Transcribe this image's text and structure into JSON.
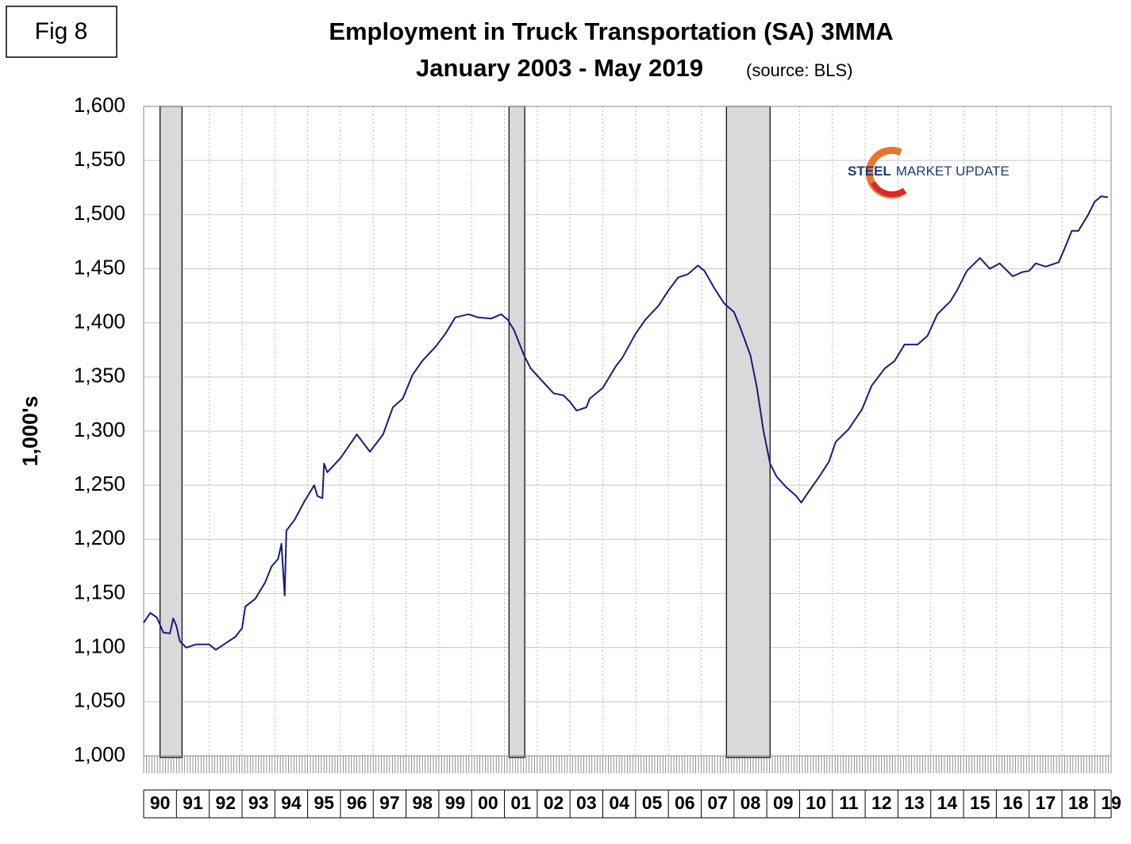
{
  "figure_label": "Fig 8",
  "logo": {
    "bold": "STEEL",
    "rest": "MARKET UPDATE"
  },
  "chart_data": {
    "type": "line",
    "title": "Employment in Truck Transportation (SA) 3MMA",
    "subtitle": "January 2003 - May 2019",
    "source": "(source: BLS)",
    "y_label": "1,000's",
    "xlim": [
      1990,
      2019.5
    ],
    "xticks": [
      {
        "value": 1990,
        "label": "90"
      },
      {
        "value": 1991,
        "label": "91"
      },
      {
        "value": 1992,
        "label": "92"
      },
      {
        "value": 1993,
        "label": "93"
      },
      {
        "value": 1994,
        "label": "94"
      },
      {
        "value": 1995,
        "label": "95"
      },
      {
        "value": 1996,
        "label": "96"
      },
      {
        "value": 1997,
        "label": "97"
      },
      {
        "value": 1998,
        "label": "98"
      },
      {
        "value": 1999,
        "label": "99"
      },
      {
        "value": 2000,
        "label": "00"
      },
      {
        "value": 2001,
        "label": "01"
      },
      {
        "value": 2002,
        "label": "02"
      },
      {
        "value": 2003,
        "label": "03"
      },
      {
        "value": 2004,
        "label": "04"
      },
      {
        "value": 2005,
        "label": "05"
      },
      {
        "value": 2006,
        "label": "06"
      },
      {
        "value": 2007,
        "label": "07"
      },
      {
        "value": 2008,
        "label": "08"
      },
      {
        "value": 2009,
        "label": "09"
      },
      {
        "value": 2010,
        "label": "10"
      },
      {
        "value": 2011,
        "label": "11"
      },
      {
        "value": 2012,
        "label": "12"
      },
      {
        "value": 2013,
        "label": "13"
      },
      {
        "value": 2014,
        "label": "14"
      },
      {
        "value": 2015,
        "label": "15"
      },
      {
        "value": 2016,
        "label": "16"
      },
      {
        "value": 2017,
        "label": "17"
      },
      {
        "value": 2018,
        "label": "18"
      },
      {
        "value": 2019,
        "label": "19"
      }
    ],
    "ylim": [
      1000,
      1600
    ],
    "yticks": [
      {
        "value": 1000,
        "label": "1,000"
      },
      {
        "value": 1050,
        "label": "1,050"
      },
      {
        "value": 1100,
        "label": "1,100"
      },
      {
        "value": 1150,
        "label": "1,150"
      },
      {
        "value": 1200,
        "label": "1,200"
      },
      {
        "value": 1250,
        "label": "1,250"
      },
      {
        "value": 1300,
        "label": "1,300"
      },
      {
        "value": 1350,
        "label": "1,350"
      },
      {
        "value": 1400,
        "label": "1,400"
      },
      {
        "value": 1450,
        "label": "1,450"
      },
      {
        "value": 1500,
        "label": "1,500"
      },
      {
        "value": 1550,
        "label": "1,550"
      },
      {
        "value": 1600,
        "label": "1,600"
      }
    ],
    "grid": true,
    "recessions": [
      [
        1990.5,
        1991.17
      ],
      [
        2001.14,
        2001.62
      ],
      [
        2007.77,
        2009.1
      ]
    ],
    "recession_color": "#d9d9d9",
    "x": [
      1990.0,
      1990.2,
      1990.4,
      1990.6,
      1990.8,
      1990.9,
      1991.0,
      1991.1,
      1991.3,
      1991.6,
      1992.0,
      1992.2,
      1992.5,
      1992.8,
      1993.0,
      1993.1,
      1993.4,
      1993.7,
      1993.9,
      1994.1,
      1994.2,
      1994.3,
      1994.35,
      1994.6,
      1994.9,
      1995.2,
      1995.3,
      1995.45,
      1995.5,
      1995.6,
      1996.0,
      1996.5,
      1996.8,
      1996.9,
      1997.3,
      1997.6,
      1997.9,
      1998.2,
      1998.5,
      1998.9,
      1999.2,
      1999.5,
      1999.9,
      2000.2,
      2000.6,
      2000.9,
      2001.1,
      2001.3,
      2001.6,
      2001.8,
      2002.1,
      2002.5,
      2002.8,
      2003.0,
      2003.2,
      2003.5,
      2003.6,
      2004.0,
      2004.4,
      2004.6,
      2005.0,
      2005.3,
      2005.7,
      2006.0,
      2006.3,
      2006.6,
      2006.9,
      2007.1,
      2007.4,
      2007.7,
      2008.0,
      2008.2,
      2008.5,
      2008.7,
      2008.9,
      2009.1,
      2009.3,
      2009.6,
      2009.9,
      2010.05,
      2010.3,
      2010.6,
      2010.9,
      2011.1,
      2011.5,
      2011.9,
      2012.2,
      2012.6,
      2012.9,
      2013.2,
      2013.6,
      2013.9,
      2014.2,
      2014.6,
      2014.8,
      2015.1,
      2015.5,
      2015.8,
      2016.1,
      2016.5,
      2016.8,
      2017.0,
      2017.2,
      2017.5,
      2017.9,
      2018.1,
      2018.3,
      2018.5,
      2018.8,
      2019.0,
      2019.2,
      2019.4
    ],
    "series": [
      {
        "color": "#1a1a80",
        "values": [
          1123,
          1132,
          1128,
          1114,
          1113,
          1127,
          1120,
          1106,
          1100,
          1103,
          1103,
          1098,
          1104,
          1110,
          1118,
          1138,
          1145,
          1160,
          1175,
          1182,
          1196,
          1148,
          1208,
          1218,
          1235,
          1250,
          1240,
          1238,
          1270,
          1262,
          1275,
          1297,
          1285,
          1281,
          1297,
          1322,
          1330,
          1352,
          1365,
          1378,
          1390,
          1405,
          1408,
          1405,
          1404,
          1408,
          1403,
          1393,
          1370,
          1358,
          1348,
          1335,
          1333,
          1327,
          1319,
          1322,
          1330,
          1340,
          1360,
          1368,
          1390,
          1403,
          1416,
          1430,
          1442,
          1445,
          1453,
          1448,
          1432,
          1418,
          1410,
          1395,
          1370,
          1340,
          1300,
          1270,
          1258,
          1248,
          1240,
          1234,
          1245,
          1258,
          1272,
          1290,
          1302,
          1320,
          1342,
          1358,
          1365,
          1380,
          1380,
          1388,
          1408,
          1420,
          1430,
          1448,
          1460,
          1450,
          1455,
          1443,
          1447,
          1448,
          1455,
          1452,
          1456,
          1470,
          1485,
          1485,
          1500,
          1512,
          1517,
          1516
        ]
      }
    ]
  }
}
